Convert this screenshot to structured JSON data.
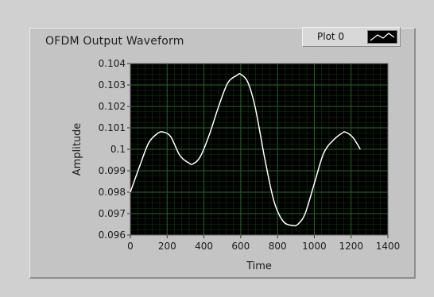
{
  "graph": {
    "title": "OFDM Output Waveform",
    "legend_label": "Plot 0"
  },
  "chart_data": {
    "type": "line",
    "title": "OFDM Output Waveform",
    "xlabel": "Time",
    "ylabel": "Amplitude",
    "xlim": [
      0,
      1400
    ],
    "ylim": [
      0.096,
      0.104
    ],
    "grid": true,
    "legend": "top-right",
    "x_ticks": [
      "0",
      "200",
      "400",
      "600",
      "800",
      "1000",
      "1200",
      "1400"
    ],
    "y_ticks": [
      "0.096",
      "0.097",
      "0.098",
      "0.099",
      "0.1",
      "0.101",
      "0.102",
      "0.103",
      "0.104"
    ],
    "colors": {
      "plot_background": "#000000",
      "grid": "#1f6b1f",
      "line": "#ffffff"
    },
    "series": [
      {
        "name": "Plot 0",
        "x": [
          0,
          50,
          100,
          150,
          180,
          220,
          270,
          320,
          340,
          380,
          430,
          480,
          530,
          580,
          600,
          640,
          680,
          730,
          780,
          830,
          880,
          910,
          950,
          1000,
          1050,
          1100,
          1150,
          1170,
          1210,
          1250
        ],
        "y": [
          0.098,
          0.0992,
          0.1003,
          0.10075,
          0.1008,
          0.10058,
          0.0997,
          0.09935,
          0.09932,
          0.09965,
          0.1007,
          0.102,
          0.1031,
          0.10345,
          0.1035,
          0.1031,
          0.1019,
          0.0996,
          0.0976,
          0.09665,
          0.09645,
          0.0965,
          0.097,
          0.0984,
          0.0998,
          0.1004,
          0.10075,
          0.1008,
          0.10055,
          0.1
        ]
      }
    ]
  }
}
